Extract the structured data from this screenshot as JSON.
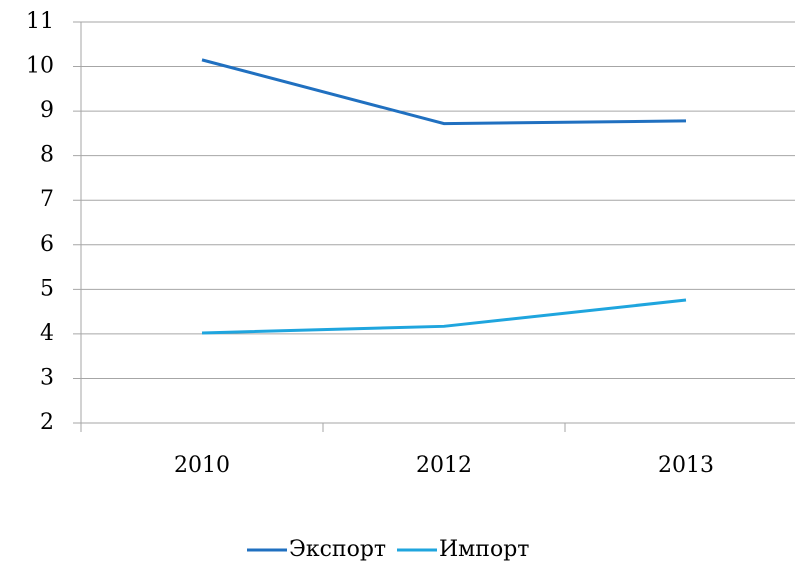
{
  "chart_data": {
    "type": "line",
    "categories": [
      "2010",
      "2012",
      "2013"
    ],
    "series": [
      {
        "name": "Экспорт",
        "color": "#2070c0",
        "values": [
          10.15,
          8.72,
          8.78
        ]
      },
      {
        "name": "Импорт",
        "color": "#1fa5de",
        "values": [
          4.02,
          4.17,
          4.76
        ]
      }
    ],
    "ylim": [
      2,
      11
    ],
    "yticks": [
      2,
      3,
      4,
      5,
      6,
      7,
      8,
      9,
      10,
      11
    ],
    "grid": true,
    "legend": "bottom"
  }
}
